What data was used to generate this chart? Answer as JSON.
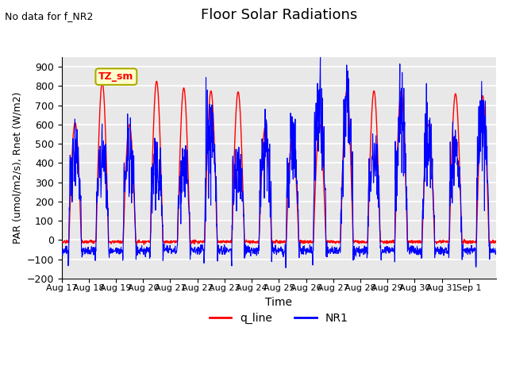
{
  "title": "Floor Solar Radiations",
  "xlabel": "Time",
  "ylabel": "PAR (umol/m2/s), Rnet (W/m2)",
  "ylim": [
    -200,
    950
  ],
  "yticks": [
    -200,
    -100,
    0,
    100,
    200,
    300,
    400,
    500,
    600,
    700,
    800,
    900
  ],
  "xtick_labels": [
    "Aug 17",
    "Aug 18",
    "Aug 19",
    "Aug 20",
    "Aug 21",
    "Aug 22",
    "Aug 23",
    "Aug 24",
    "Aug 25",
    "Aug 26",
    "Aug 27",
    "Aug 28",
    "Aug 29",
    "Aug 30",
    "Aug 31",
    "Sep 1"
  ],
  "annotation_text": "No data for f_NR2",
  "legend_box_text": "TZ_sm",
  "legend_box_color": "#ffffcc",
  "legend_box_edge": "#aaaa00",
  "q_line_color": "red",
  "nr1_color": "blue",
  "plot_bg": "#e8e8e8",
  "grid_color": "white",
  "night_trough_q": -10,
  "night_trough_nr1": -55,
  "q_peaks": [
    610,
    820,
    600,
    825,
    790,
    775,
    770,
    590,
    540,
    600,
    775,
    775,
    775,
    600,
    760,
    750
  ],
  "nr1_peaks": [
    490,
    430,
    460,
    430,
    380,
    640,
    400,
    490,
    515,
    660,
    665,
    425,
    665,
    535,
    480,
    610
  ]
}
